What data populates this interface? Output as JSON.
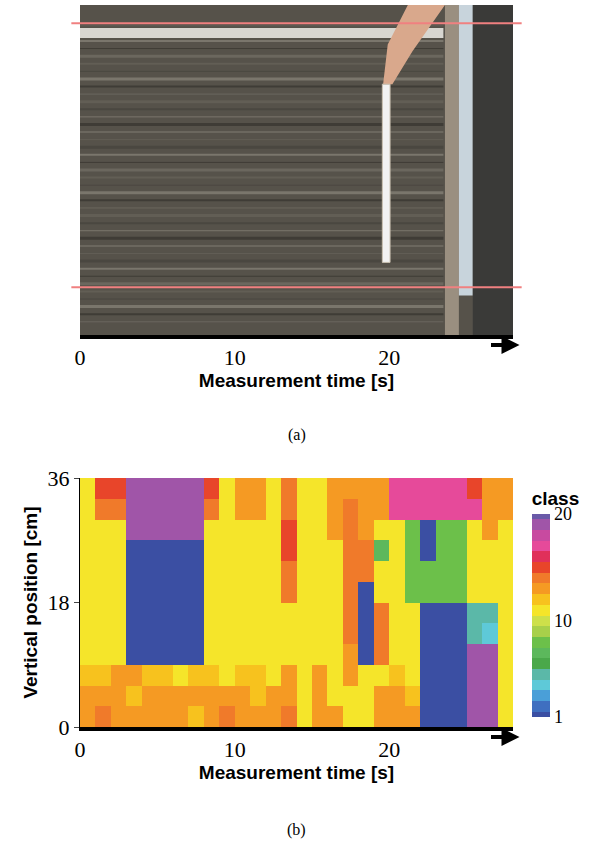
{
  "chart_data": [
    {
      "type": "image",
      "label": "(a)",
      "x_label": "Measurement time [s]",
      "xlim": [
        0,
        28
      ],
      "xticks": [
        0,
        10,
        20
      ]
    },
    {
      "type": "heatmap",
      "label": "(b)",
      "x_label": "Measurement time [s]",
      "y_label": "Vertical position [cm]",
      "xlim": [
        0,
        28
      ],
      "xticks": [
        0,
        10,
        20
      ],
      "ylim": [
        0,
        36
      ],
      "yticks": [
        0,
        18,
        36
      ],
      "x_edges": [
        0,
        1,
        2,
        3,
        4,
        5,
        6,
        7,
        8,
        9,
        10,
        11,
        12,
        13,
        14,
        15,
        16,
        17,
        18,
        19,
        20,
        21,
        22,
        23,
        24,
        25,
        26,
        27,
        28
      ],
      "y_edges": [
        0,
        3,
        6,
        9,
        12,
        15,
        18,
        21,
        24,
        27,
        30,
        33,
        36
      ],
      "cells": [
        [
          13,
          14,
          13,
          13,
          13,
          13,
          13,
          12,
          13,
          14,
          13,
          13,
          13,
          14,
          11,
          13,
          13,
          11,
          11,
          13,
          13,
          13,
          1,
          1,
          1,
          19,
          19,
          11
        ],
        [
          13,
          13,
          13,
          12,
          13,
          13,
          13,
          13,
          13,
          13,
          13,
          12,
          13,
          13,
          11,
          13,
          11,
          11,
          11,
          13,
          13,
          12,
          1,
          1,
          1,
          19,
          19,
          11
        ],
        [
          12,
          12,
          13,
          13,
          12,
          12,
          11,
          12,
          12,
          11,
          12,
          12,
          11,
          13,
          11,
          13,
          11,
          13,
          11,
          11,
          12,
          11,
          1,
          1,
          1,
          19,
          19,
          11
        ],
        [
          11,
          11,
          11,
          1,
          1,
          1,
          1,
          1,
          11,
          11,
          11,
          11,
          11,
          11,
          11,
          11,
          11,
          13,
          1,
          14,
          11,
          11,
          1,
          1,
          1,
          19,
          19,
          11
        ],
        [
          11,
          11,
          11,
          1,
          1,
          1,
          1,
          1,
          11,
          11,
          11,
          11,
          11,
          11,
          11,
          11,
          11,
          14,
          1,
          14,
          11,
          11,
          1,
          1,
          1,
          5,
          4,
          11
        ],
        [
          11,
          11,
          11,
          1,
          1,
          1,
          1,
          1,
          11,
          11,
          11,
          11,
          11,
          11,
          11,
          11,
          11,
          14,
          1,
          14,
          11,
          11,
          1,
          1,
          1,
          5,
          5,
          11
        ],
        [
          11,
          11,
          11,
          1,
          1,
          1,
          1,
          1,
          11,
          11,
          11,
          11,
          11,
          14,
          11,
          11,
          11,
          14,
          1,
          11,
          11,
          8,
          8,
          8,
          8,
          11,
          11,
          11
        ],
        [
          11,
          11,
          11,
          1,
          1,
          1,
          1,
          1,
          11,
          11,
          11,
          11,
          11,
          14,
          11,
          11,
          11,
          14,
          14,
          11,
          11,
          8,
          8,
          8,
          8,
          11,
          11,
          11
        ],
        [
          11,
          11,
          11,
          1,
          1,
          1,
          1,
          1,
          11,
          11,
          11,
          11,
          11,
          15,
          11,
          11,
          11,
          14,
          14,
          7,
          11,
          8,
          1,
          8,
          8,
          11,
          11,
          11
        ],
        [
          11,
          11,
          11,
          19,
          19,
          19,
          19,
          19,
          11,
          11,
          11,
          11,
          11,
          15,
          11,
          11,
          13,
          14,
          13,
          11,
          11,
          8,
          1,
          8,
          8,
          11,
          13,
          11
        ],
        [
          11,
          14,
          14,
          19,
          19,
          19,
          19,
          19,
          14,
          11,
          13,
          13,
          11,
          14,
          11,
          11,
          13,
          14,
          13,
          13,
          17,
          17,
          17,
          17,
          17,
          17,
          13,
          13
        ],
        [
          11,
          15,
          15,
          19,
          19,
          19,
          19,
          19,
          15,
          11,
          13,
          13,
          11,
          14,
          11,
          11,
          13,
          13,
          13,
          13,
          17,
          17,
          17,
          17,
          17,
          15,
          13,
          13
        ]
      ],
      "colorbar": {
        "title": "class",
        "range": [
          1,
          20
        ],
        "ticks": [
          1,
          10,
          20
        ]
      },
      "colors": [
        "#3b4fa3",
        "#3f6fc0",
        "#4a9fd8",
        "#5ec9d8",
        "#5bb8a8",
        "#4aa84a",
        "#5cb85c",
        "#6cc04a",
        "#a8d04a",
        "#cde04a",
        "#f5e52a",
        "#f7c21e",
        "#f59a23",
        "#f07a2a",
        "#e8452a",
        "#e0305a",
        "#e64a9a",
        "#c84aa0",
        "#a055a8",
        "#6a5aa8"
      ]
    }
  ]
}
